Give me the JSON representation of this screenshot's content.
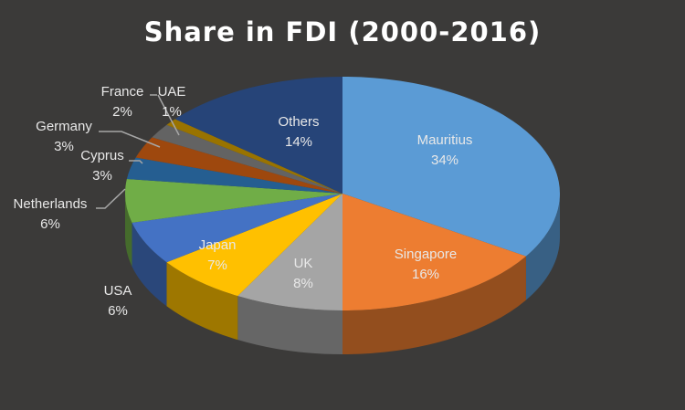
{
  "chart_data": {
    "type": "pie",
    "title": "Share in FDI (2000-2016)",
    "style": "3d",
    "slices": [
      {
        "label": "Mauritius",
        "value": 34,
        "pct": "34%",
        "color": "#5B9BD5"
      },
      {
        "label": "Singapore",
        "value": 16,
        "pct": "16%",
        "color": "#ED7D31"
      },
      {
        "label": "UK",
        "value": 8,
        "pct": "8%",
        "color": "#A5A5A5"
      },
      {
        "label": "Japan",
        "value": 7,
        "pct": "7%",
        "color": "#FFC000"
      },
      {
        "label": "USA",
        "value": 6,
        "pct": "6%",
        "color": "#4472C4"
      },
      {
        "label": "Netherlands",
        "value": 6,
        "pct": "6%",
        "color": "#70AD47"
      },
      {
        "label": "Cyprus",
        "value": 3,
        "pct": "3%",
        "color": "#255E91"
      },
      {
        "label": "Germany",
        "value": 3,
        "pct": "3%",
        "color": "#9E480E"
      },
      {
        "label": "France",
        "value": 2,
        "pct": "2%",
        "color": "#636363"
      },
      {
        "label": "UAE",
        "value": 1,
        "pct": "1%",
        "color": "#997300"
      },
      {
        "label": "Others",
        "value": 14,
        "pct": "14%",
        "color": "#264478"
      }
    ]
  }
}
